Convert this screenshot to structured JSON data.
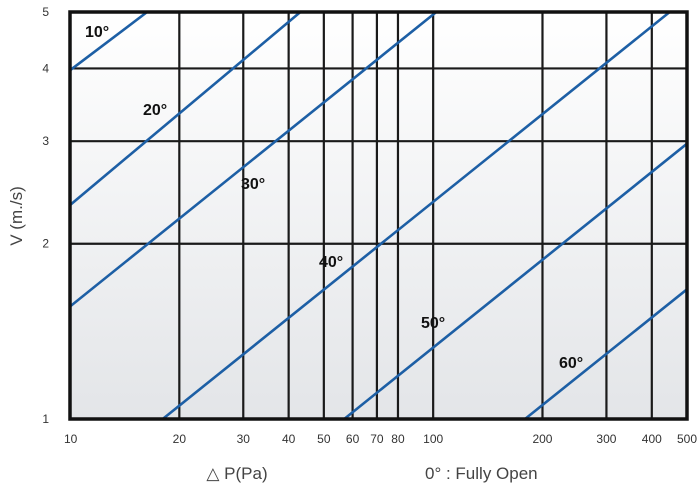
{
  "chart_data": {
    "type": "line",
    "xscale": "log",
    "yscale": "log",
    "xlim": [
      10,
      500
    ],
    "ylim": [
      1,
      5
    ],
    "x_ticks": [
      "10",
      "20",
      "30",
      "40",
      "50",
      "60",
      "70",
      "80",
      "100",
      "200",
      "300",
      "400",
      "500"
    ],
    "x_tick_values": [
      10,
      20,
      30,
      40,
      50,
      60,
      70,
      80,
      100,
      200,
      300,
      400,
      500
    ],
    "y_ticks": [
      "1",
      "2",
      "3",
      "4",
      "5"
    ],
    "y_tick_values": [
      1,
      2,
      3,
      4,
      5
    ],
    "xlabel": "△ P(Pa)",
    "ylabel": "V (m./s)",
    "grid": true,
    "series_color": "#1d5fa5",
    "series": [
      {
        "label": "10°",
        "points": [
          [
            10,
            3.97
          ],
          [
            16.3,
            5.0
          ]
        ]
      },
      {
        "label": "20°",
        "points": [
          [
            10,
            2.33
          ],
          [
            43.1,
            5.0
          ]
        ]
      },
      {
        "label": "30°",
        "points": [
          [
            10,
            1.56
          ],
          [
            102,
            5.0
          ]
        ]
      },
      {
        "label": "40°",
        "points": [
          [
            18.0,
            1.0
          ],
          [
            448,
            5.0
          ]
        ]
      },
      {
        "label": "50°",
        "points": [
          [
            56.9,
            1.0
          ],
          [
            500,
            2.97
          ]
        ]
      },
      {
        "label": "60°",
        "points": [
          [
            179,
            1.0
          ],
          [
            500,
            1.67
          ]
        ]
      }
    ],
    "annotation": "0° : Fully Open"
  }
}
